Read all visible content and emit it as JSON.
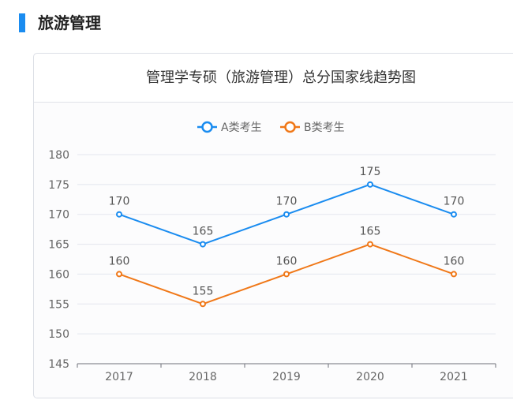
{
  "section_title": "旅游管理",
  "chart_data": {
    "type": "line",
    "title": "管理学专硕（旅游管理）总分国家线趋势图",
    "categories": [
      "2017",
      "2018",
      "2019",
      "2020",
      "2021"
    ],
    "series": [
      {
        "name": "A类考生",
        "values": [
          170,
          165,
          170,
          175,
          170
        ],
        "color": "#1a8cf0"
      },
      {
        "name": "B类考生",
        "values": [
          160,
          155,
          160,
          165,
          160
        ],
        "color": "#f07818"
      }
    ],
    "ylim": [
      145,
      180
    ],
    "yticks": [
      145,
      150,
      155,
      160,
      165,
      170,
      175,
      180
    ],
    "legend": "top-center",
    "grid": true,
    "data_labels": true
  }
}
